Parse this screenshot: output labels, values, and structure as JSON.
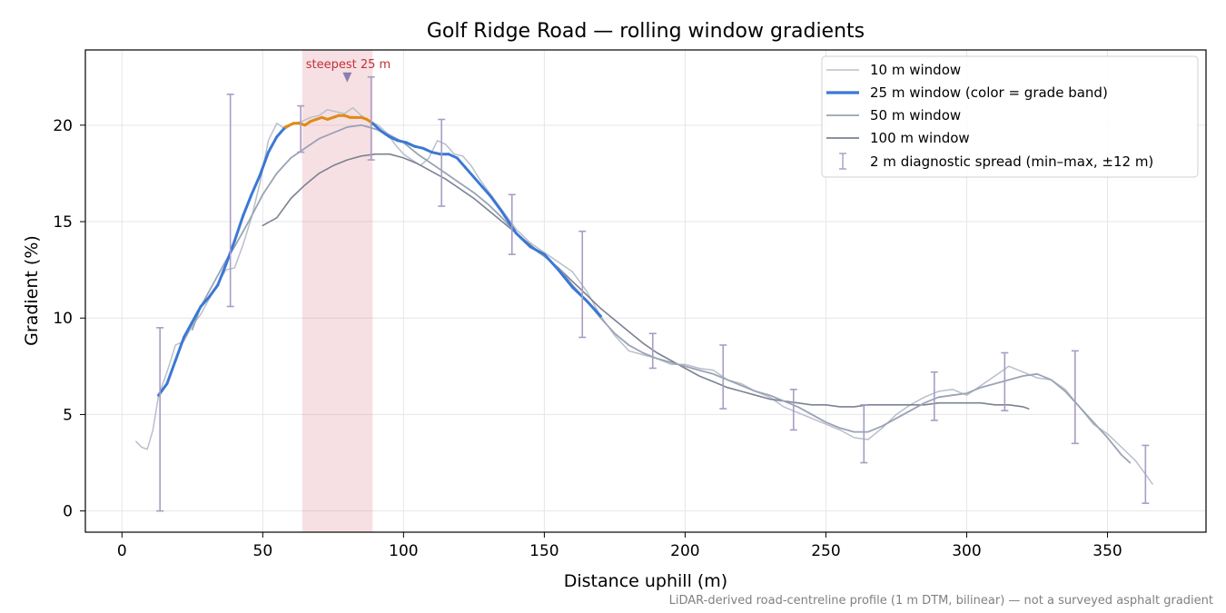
{
  "chart_data": {
    "type": "line",
    "title": "Golf Ridge Road — rolling window gradients",
    "xlabel": "Distance uphill (m)",
    "ylabel": "Gradient (%)",
    "xlim": [
      -13,
      385
    ],
    "ylim": [
      -1.1,
      23.9
    ],
    "xticks": [
      0,
      50,
      100,
      150,
      200,
      250,
      300,
      350
    ],
    "yticks": [
      0,
      5,
      10,
      15,
      20
    ],
    "grid": true,
    "legend_position": "upper right",
    "footnote": "LiDAR-derived road-centreline profile (1 m DTM, bilinear) — not a surveyed asphalt gradient",
    "highlight": {
      "label": "steepest 25 m",
      "x_range": [
        64,
        89
      ],
      "marker_x": 80,
      "marker_y": 22.5,
      "color": "#d9707f"
    },
    "grade_band_colors": {
      "below_20": "#3a78d4",
      "20_and_above": "#e08a14"
    },
    "series": [
      {
        "name": "10 m window",
        "color": "#b8bfcc",
        "x": [
          5,
          7,
          9,
          11,
          13,
          16,
          19,
          22,
          25,
          28,
          31,
          34,
          37,
          40,
          43,
          46,
          49,
          52,
          55,
          58,
          61,
          64,
          67,
          70,
          73,
          76,
          79,
          82,
          85,
          88,
          91,
          94,
          97,
          100,
          103,
          106,
          109,
          112,
          115,
          118,
          121,
          124,
          127,
          130,
          135,
          140,
          145,
          150,
          155,
          160,
          165,
          170,
          175,
          180,
          185,
          190,
          195,
          200,
          205,
          210,
          215,
          220,
          225,
          230,
          235,
          240,
          245,
          250,
          255,
          260,
          265,
          270,
          275,
          280,
          285,
          290,
          295,
          300,
          305,
          310,
          315,
          320,
          325,
          330,
          335,
          340,
          345,
          350,
          355,
          360,
          366
        ],
        "values": [
          3.6,
          3.3,
          3.2,
          4.2,
          6.0,
          7.2,
          8.6,
          8.8,
          9.6,
          10.2,
          11.0,
          11.8,
          12.5,
          12.6,
          13.8,
          15.2,
          17.0,
          19.2,
          20.1,
          19.8,
          20.1,
          20.2,
          20.4,
          20.5,
          20.8,
          20.7,
          20.6,
          20.9,
          20.5,
          20.2,
          20.0,
          19.6,
          19.0,
          18.5,
          18.2,
          17.9,
          18.3,
          19.2,
          19.0,
          18.5,
          18.4,
          17.9,
          17.2,
          16.6,
          15.6,
          14.6,
          13.9,
          13.4,
          12.9,
          12.4,
          11.4,
          10.1,
          9.1,
          8.3,
          8.1,
          7.9,
          7.6,
          7.6,
          7.4,
          7.3,
          6.8,
          6.6,
          6.2,
          5.9,
          5.4,
          5.1,
          4.8,
          4.5,
          4.2,
          3.8,
          3.7,
          4.3,
          5.0,
          5.5,
          5.9,
          6.2,
          6.3,
          6.0,
          6.5,
          7.0,
          7.5,
          7.2,
          6.9,
          6.8,
          6.3,
          5.4,
          4.5,
          4.0,
          3.3,
          2.6,
          1.4
        ]
      },
      {
        "name": "25 m window (color = grade band)",
        "color": "#3a78d4",
        "x": [
          13,
          16,
          19,
          22,
          25,
          28,
          31,
          34,
          37,
          40,
          43,
          46,
          49,
          52,
          55,
          58,
          61,
          63,
          65,
          67,
          69,
          71,
          73,
          75,
          77,
          79,
          81,
          83,
          85,
          87,
          89,
          92,
          95,
          98,
          101,
          104,
          107,
          110,
          113,
          116,
          119,
          122,
          125,
          128,
          131,
          135,
          140,
          145,
          150,
          155,
          160,
          165,
          170
        ],
        "values": [
          6.0,
          6.6,
          7.8,
          9.0,
          9.8,
          10.6,
          11.1,
          11.7,
          12.8,
          14.0,
          15.3,
          16.4,
          17.4,
          18.6,
          19.4,
          19.9,
          20.1,
          20.1,
          20.0,
          20.2,
          20.3,
          20.4,
          20.3,
          20.4,
          20.5,
          20.5,
          20.4,
          20.4,
          20.4,
          20.3,
          20.1,
          19.7,
          19.4,
          19.2,
          19.1,
          18.9,
          18.8,
          18.6,
          18.5,
          18.5,
          18.3,
          17.8,
          17.3,
          16.8,
          16.3,
          15.5,
          14.4,
          13.7,
          13.3,
          12.5,
          11.6,
          10.9,
          10.1
        ]
      },
      {
        "name": "50 m window",
        "color": "#9aa3b5",
        "x": [
          25,
          28,
          31,
          34,
          37,
          40,
          45,
          50,
          55,
          60,
          65,
          70,
          75,
          80,
          85,
          90,
          95,
          100,
          105,
          110,
          115,
          120,
          125,
          130,
          135,
          140,
          145,
          150,
          155,
          160,
          165,
          170,
          175,
          180,
          185,
          190,
          195,
          200,
          205,
          210,
          215,
          220,
          225,
          230,
          235,
          240,
          245,
          250,
          255,
          260,
          265,
          270,
          275,
          280,
          285,
          290,
          295,
          300,
          305,
          310,
          315,
          320,
          325,
          330,
          335,
          340,
          345,
          350,
          355,
          358
        ],
        "values": [
          9.4,
          10.6,
          11.4,
          12.2,
          13.0,
          13.7,
          15.0,
          16.4,
          17.5,
          18.3,
          18.8,
          19.3,
          19.6,
          19.9,
          20.0,
          19.8,
          19.5,
          19.1,
          18.5,
          18.0,
          17.5,
          17.0,
          16.5,
          15.9,
          15.2,
          14.4,
          13.7,
          13.2,
          12.6,
          11.7,
          10.9,
          10.0,
          9.2,
          8.6,
          8.2,
          7.9,
          7.7,
          7.5,
          7.3,
          7.1,
          6.8,
          6.5,
          6.2,
          6.0,
          5.7,
          5.4,
          5.0,
          4.6,
          4.3,
          4.1,
          4.1,
          4.4,
          4.8,
          5.2,
          5.6,
          5.9,
          6.0,
          6.1,
          6.4,
          6.6,
          6.8,
          7.0,
          7.1,
          6.8,
          6.2,
          5.4,
          4.6,
          3.8,
          2.9,
          2.5
        ]
      },
      {
        "name": "100 m window",
        "color": "#7a8292",
        "x": [
          50,
          55,
          60,
          65,
          70,
          75,
          80,
          85,
          90,
          95,
          100,
          105,
          110,
          115,
          120,
          125,
          130,
          135,
          140,
          145,
          150,
          155,
          160,
          165,
          170,
          175,
          180,
          185,
          190,
          195,
          200,
          205,
          210,
          215,
          220,
          225,
          230,
          235,
          240,
          245,
          250,
          255,
          260,
          265,
          270,
          275,
          280,
          285,
          290,
          295,
          300,
          305,
          310,
          315,
          320,
          322
        ],
        "values": [
          14.8,
          15.2,
          16.2,
          16.9,
          17.5,
          17.9,
          18.2,
          18.4,
          18.5,
          18.5,
          18.3,
          18.0,
          17.6,
          17.2,
          16.7,
          16.2,
          15.6,
          15.0,
          14.4,
          13.8,
          13.2,
          12.6,
          11.9,
          11.2,
          10.5,
          9.9,
          9.3,
          8.7,
          8.2,
          7.8,
          7.4,
          7.0,
          6.7,
          6.4,
          6.2,
          6.0,
          5.8,
          5.7,
          5.6,
          5.5,
          5.5,
          5.4,
          5.4,
          5.5,
          5.5,
          5.5,
          5.5,
          5.5,
          5.6,
          5.6,
          5.6,
          5.6,
          5.5,
          5.5,
          5.4,
          5.3
        ]
      }
    ],
    "error_bars": {
      "name": "2 m diagnostic spread (min–max, ±12 m)",
      "color": "#a89cc4",
      "points": [
        {
          "x": 13.5,
          "low": 0.0,
          "high": 9.5
        },
        {
          "x": 38.5,
          "low": 10.6,
          "high": 21.6
        },
        {
          "x": 63.5,
          "low": 18.6,
          "high": 21.0
        },
        {
          "x": 88.5,
          "low": 18.2,
          "high": 22.5
        },
        {
          "x": 113.5,
          "low": 15.8,
          "high": 20.3
        },
        {
          "x": 138.5,
          "low": 13.3,
          "high": 16.4
        },
        {
          "x": 163.5,
          "low": 9.0,
          "high": 14.5
        },
        {
          "x": 188.5,
          "low": 7.4,
          "high": 9.2
        },
        {
          "x": 213.5,
          "low": 5.3,
          "high": 8.6
        },
        {
          "x": 238.5,
          "low": 4.2,
          "high": 6.3
        },
        {
          "x": 263.5,
          "low": 2.5,
          "high": 5.5
        },
        {
          "x": 288.5,
          "low": 4.7,
          "high": 7.2
        },
        {
          "x": 313.5,
          "low": 5.2,
          "high": 8.2
        },
        {
          "x": 338.5,
          "low": 3.5,
          "high": 8.3
        },
        {
          "x": 363.5,
          "low": 0.4,
          "high": 3.4
        }
      ]
    }
  }
}
